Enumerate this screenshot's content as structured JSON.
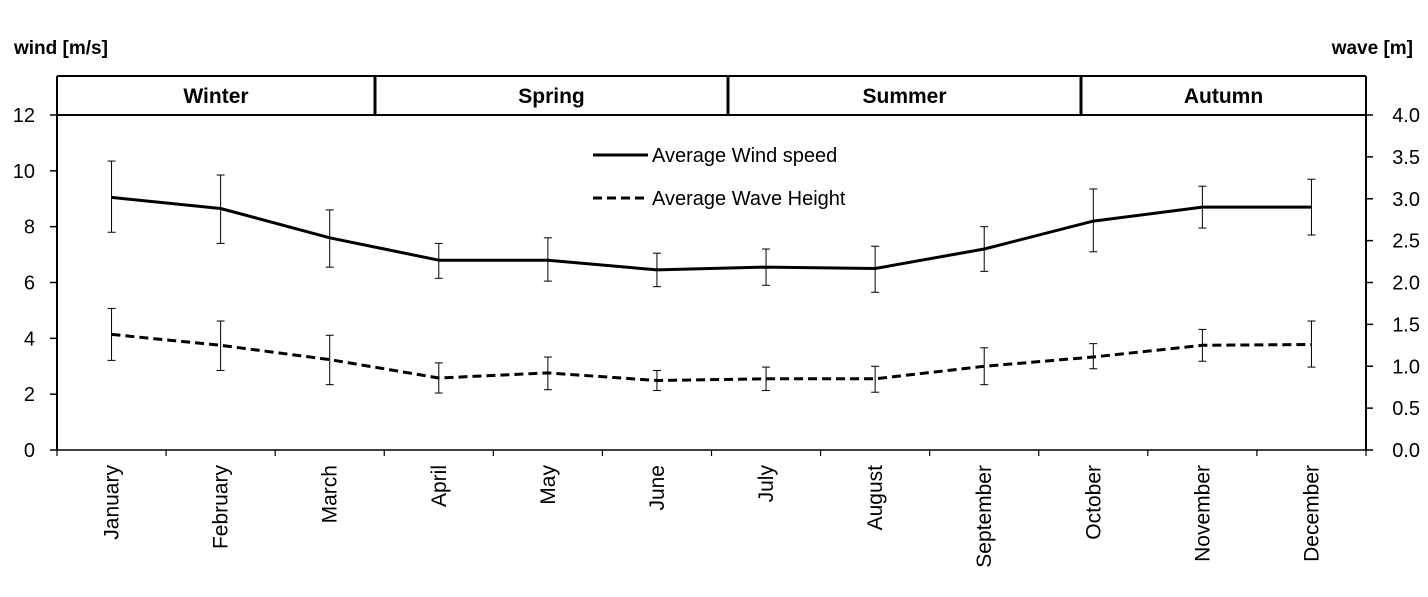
{
  "chart_data": {
    "type": "line",
    "left_axis_title": "wind [m/s]",
    "right_axis_title": "wave [m]",
    "seasons": [
      "Winter",
      "Spring",
      "Summer",
      "Autumn"
    ],
    "categories": [
      "January",
      "February",
      "March",
      "April",
      "May",
      "June",
      "July",
      "August",
      "September",
      "October",
      "November",
      "December"
    ],
    "y_left": {
      "min": 0,
      "max": 12,
      "ticks": [
        "0",
        "2",
        "4",
        "6",
        "8",
        "10",
        "12"
      ]
    },
    "y_right": {
      "min": 0,
      "max": 4,
      "ticks": [
        "0.0",
        "0.5",
        "1.0",
        "1.5",
        "2.0",
        "2.5",
        "3.0",
        "3.5",
        "4.0"
      ]
    },
    "series": [
      {
        "name": "Average Wind speed",
        "axis": "left",
        "line_style": "solid",
        "values": [
          9.05,
          8.65,
          7.6,
          6.8,
          6.8,
          6.45,
          6.55,
          6.5,
          7.2,
          8.2,
          8.7,
          8.7
        ],
        "error_low": [
          7.8,
          7.4,
          6.55,
          6.15,
          6.05,
          5.85,
          5.9,
          5.65,
          6.4,
          7.1,
          7.95,
          7.7
        ],
        "error_high": [
          10.35,
          9.85,
          8.6,
          7.4,
          7.6,
          7.05,
          7.2,
          7.3,
          8.0,
          9.35,
          9.45,
          9.7
        ]
      },
      {
        "name": "Average Wave Height",
        "axis": "right",
        "line_style": "dashed",
        "values": [
          1.38,
          1.25,
          1.08,
          0.86,
          0.92,
          0.83,
          0.85,
          0.85,
          1.0,
          1.11,
          1.25,
          1.26
        ],
        "error_low": [
          1.07,
          0.95,
          0.78,
          0.68,
          0.72,
          0.71,
          0.71,
          0.69,
          0.78,
          0.97,
          1.06,
          0.99
        ],
        "error_high": [
          1.69,
          1.54,
          1.37,
          1.04,
          1.11,
          0.95,
          0.99,
          1.0,
          1.22,
          1.27,
          1.44,
          1.54
        ]
      }
    ],
    "legend_position": "top-center",
    "grid": false
  }
}
